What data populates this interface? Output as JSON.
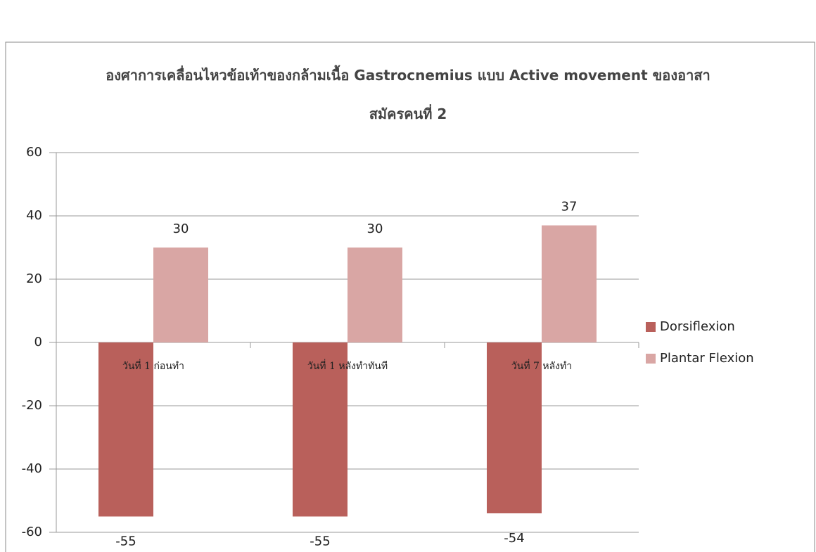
{
  "chart_data": {
    "type": "bar",
    "title": "องศาการเคลื่อนไหวข้อเท้าของกล้ามเนื้อ Gastrocnemius แบบ Active movement ของอาสาสมัครคนที่ 2",
    "categories": [
      "วันที่ 1 ก่อนทำ",
      "วันที่ 1 หลังทำทันที",
      "วันที่ 7 หลังทำ"
    ],
    "series": [
      {
        "name": "Dorsiflexion",
        "color": "#b9605b",
        "values": [
          -55,
          -55,
          -54
        ]
      },
      {
        "name": "Plantar Flexion",
        "color": "#d9a6a4",
        "values": [
          30,
          30,
          37
        ]
      }
    ],
    "ylim": [
      -60,
      60
    ],
    "yticks": [
      -60,
      -40,
      -20,
      0,
      20,
      40,
      60
    ],
    "grid": true,
    "legend": "right"
  }
}
